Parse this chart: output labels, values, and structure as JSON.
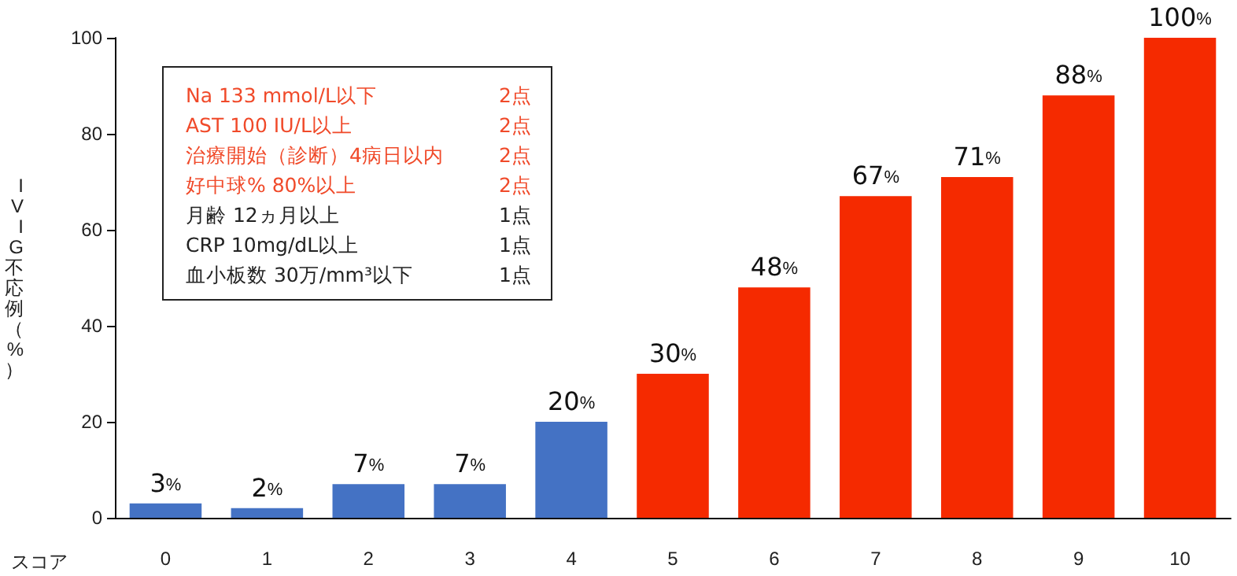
{
  "chart_data": {
    "type": "bar",
    "xlabel": "スコア",
    "ylabel": "IVIG不応例（%）",
    "categories": [
      "0",
      "1",
      "2",
      "3",
      "4",
      "5",
      "6",
      "7",
      "8",
      "9",
      "10"
    ],
    "values": [
      3,
      2,
      7,
      7,
      20,
      30,
      48,
      67,
      71,
      88,
      100
    ],
    "colors": [
      "#4472c4",
      "#4472c4",
      "#4472c4",
      "#4472c4",
      "#4472c4",
      "#f52a00",
      "#f52a00",
      "#f52a00",
      "#f52a00",
      "#f52a00",
      "#f52a00"
    ],
    "value_labels": [
      "3%",
      "2%",
      "7%",
      "7%",
      "20%",
      "30%",
      "48%",
      "67%",
      "71%",
      "88%",
      "100%"
    ],
    "ylim": [
      0,
      100
    ],
    "yticks": [
      0,
      20,
      40,
      60,
      80,
      100
    ],
    "grid": false,
    "annotations": [
      "Na 133 mmol/L以下",
      "2点",
      "AST 100 IU/L以上",
      "2点",
      "治療開始（診断）4病日以内",
      "2点",
      "好中球% 80%以上",
      "2点",
      "月齢 12ヵ月以上",
      "1点",
      "CRP 10mg/dL以上",
      "1点",
      "血小板数 30万/mm³以下",
      "1点"
    ]
  }
}
